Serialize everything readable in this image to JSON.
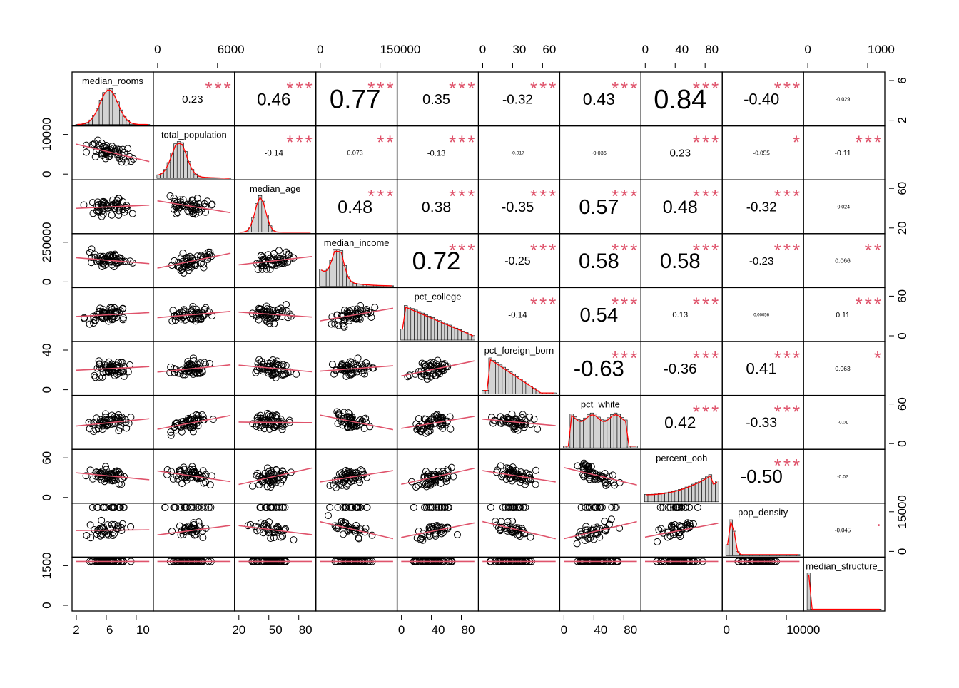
{
  "chart_data": {
    "type": "scatter-matrix",
    "variables": [
      "median_rooms",
      "total_population",
      "median_age",
      "median_income",
      "pct_college",
      "pct_foreign_born",
      "pct_white",
      "percent_ooh",
      "pop_density",
      "median_structure_age"
    ],
    "diagonal_labels": [
      "median_rooms",
      "total_population",
      "median_age",
      "median_income",
      "pct_college",
      "pct_foreign_born",
      "pct_white",
      "percent_ooh",
      "pop_density",
      "median_structure_"
    ],
    "axis_ticks": {
      "top": [
        {
          "col": 1,
          "labels": [
            "0",
            "6000"
          ]
        },
        {
          "col": 3,
          "labels": [
            "0",
            "150000"
          ]
        },
        {
          "col": 5,
          "labels": [
            "0",
            "30",
            "60"
          ]
        },
        {
          "col": 7,
          "labels": [
            "0",
            "40",
            "80"
          ]
        },
        {
          "col": 9,
          "labels": [
            "0",
            "1000"
          ]
        }
      ],
      "bottom": [
        {
          "col": 0,
          "labels": [
            "2",
            "6",
            "10"
          ]
        },
        {
          "col": 2,
          "labels": [
            "20",
            "50",
            "80"
          ]
        },
        {
          "col": 4,
          "labels": [
            "0",
            "40",
            "80"
          ]
        },
        {
          "col": 6,
          "labels": [
            "0",
            "40",
            "80"
          ]
        },
        {
          "col": 8,
          "labels": [
            "0",
            "10000"
          ]
        }
      ],
      "left": [
        {
          "row": 1,
          "labels": [
            "0",
            "10000"
          ]
        },
        {
          "row": 3,
          "labels": [
            "0",
            "250000"
          ]
        },
        {
          "row": 5,
          "labels": [
            "0",
            "40"
          ]
        },
        {
          "row": 7,
          "labels": [
            "0",
            "60"
          ]
        },
        {
          "row": 9,
          "labels": [
            "0",
            "1500"
          ]
        }
      ],
      "right": [
        {
          "row": 0,
          "labels": [
            "2",
            "6"
          ]
        },
        {
          "row": 2,
          "labels": [
            "20",
            "60"
          ]
        },
        {
          "row": 4,
          "labels": [
            "0",
            "60"
          ]
        },
        {
          "row": 6,
          "labels": [
            "0",
            "60"
          ]
        },
        {
          "row": 8,
          "labels": [
            "0",
            "15000"
          ]
        }
      ]
    },
    "correlations": [
      {
        "row": 0,
        "col": 1,
        "r": "0.23",
        "stars": "***"
      },
      {
        "row": 0,
        "col": 2,
        "r": "0.46",
        "stars": "***"
      },
      {
        "row": 0,
        "col": 3,
        "r": "0.77",
        "stars": "***"
      },
      {
        "row": 0,
        "col": 4,
        "r": "0.35",
        "stars": "***"
      },
      {
        "row": 0,
        "col": 5,
        "r": "-0.32",
        "stars": "***"
      },
      {
        "row": 0,
        "col": 6,
        "r": "0.43",
        "stars": "***"
      },
      {
        "row": 0,
        "col": 7,
        "r": "0.84",
        "stars": "***"
      },
      {
        "row": 0,
        "col": 8,
        "r": "-0.40",
        "stars": "***"
      },
      {
        "row": 0,
        "col": 9,
        "r": "-0.029",
        "stars": ""
      },
      {
        "row": 1,
        "col": 2,
        "r": "-0.14",
        "stars": "***"
      },
      {
        "row": 1,
        "col": 3,
        "r": "0.073",
        "stars": "**"
      },
      {
        "row": 1,
        "col": 4,
        "r": "-0.13",
        "stars": "***"
      },
      {
        "row": 1,
        "col": 5,
        "r": "-0.017",
        "stars": ""
      },
      {
        "row": 1,
        "col": 6,
        "r": "-0.036",
        "stars": ""
      },
      {
        "row": 1,
        "col": 7,
        "r": "0.23",
        "stars": "***"
      },
      {
        "row": 1,
        "col": 8,
        "r": "-0.055",
        "stars": "*"
      },
      {
        "row": 1,
        "col": 9,
        "r": "-0.11",
        "stars": "***"
      },
      {
        "row": 2,
        "col": 3,
        "r": "0.48",
        "stars": "***"
      },
      {
        "row": 2,
        "col": 4,
        "r": "0.38",
        "stars": "***"
      },
      {
        "row": 2,
        "col": 5,
        "r": "-0.35",
        "stars": "***"
      },
      {
        "row": 2,
        "col": 6,
        "r": "0.57",
        "stars": "***"
      },
      {
        "row": 2,
        "col": 7,
        "r": "0.48",
        "stars": "***"
      },
      {
        "row": 2,
        "col": 8,
        "r": "-0.32",
        "stars": "***"
      },
      {
        "row": 2,
        "col": 9,
        "r": "-0.024",
        "stars": ""
      },
      {
        "row": 3,
        "col": 4,
        "r": "0.72",
        "stars": "***"
      },
      {
        "row": 3,
        "col": 5,
        "r": "-0.25",
        "stars": "***"
      },
      {
        "row": 3,
        "col": 6,
        "r": "0.58",
        "stars": "***"
      },
      {
        "row": 3,
        "col": 7,
        "r": "0.58",
        "stars": "***"
      },
      {
        "row": 3,
        "col": 8,
        "r": "-0.23",
        "stars": "***"
      },
      {
        "row": 3,
        "col": 9,
        "r": "0.066",
        "stars": "**"
      },
      {
        "row": 4,
        "col": 5,
        "r": "-0.14",
        "stars": "***"
      },
      {
        "row": 4,
        "col": 6,
        "r": "0.54",
        "stars": "***"
      },
      {
        "row": 4,
        "col": 7,
        "r": "0.13",
        "stars": "***"
      },
      {
        "row": 4,
        "col": 8,
        "r": "0.00056",
        "stars": ""
      },
      {
        "row": 4,
        "col": 9,
        "r": "0.11",
        "stars": "***"
      },
      {
        "row": 5,
        "col": 6,
        "r": "-0.63",
        "stars": "***"
      },
      {
        "row": 5,
        "col": 7,
        "r": "-0.36",
        "stars": "***"
      },
      {
        "row": 5,
        "col": 8,
        "r": "0.41",
        "stars": "***"
      },
      {
        "row": 5,
        "col": 9,
        "r": "0.063",
        "stars": "*"
      },
      {
        "row": 6,
        "col": 7,
        "r": "0.42",
        "stars": "***"
      },
      {
        "row": 6,
        "col": 8,
        "r": "-0.33",
        "stars": "***"
      },
      {
        "row": 6,
        "col": 9,
        "r": "-0.01",
        "stars": ""
      },
      {
        "row": 7,
        "col": 8,
        "r": "-0.50",
        "stars": "***"
      },
      {
        "row": 7,
        "col": 9,
        "r": "-0.02",
        "stars": ""
      },
      {
        "row": 8,
        "col": 9,
        "r": "-0.045",
        "stars": "."
      }
    ],
    "colors": {
      "stars": "#DF536B",
      "smooth": "#DF536B",
      "density": "#FF0000",
      "hist_fill": "#D3D3D3"
    }
  }
}
